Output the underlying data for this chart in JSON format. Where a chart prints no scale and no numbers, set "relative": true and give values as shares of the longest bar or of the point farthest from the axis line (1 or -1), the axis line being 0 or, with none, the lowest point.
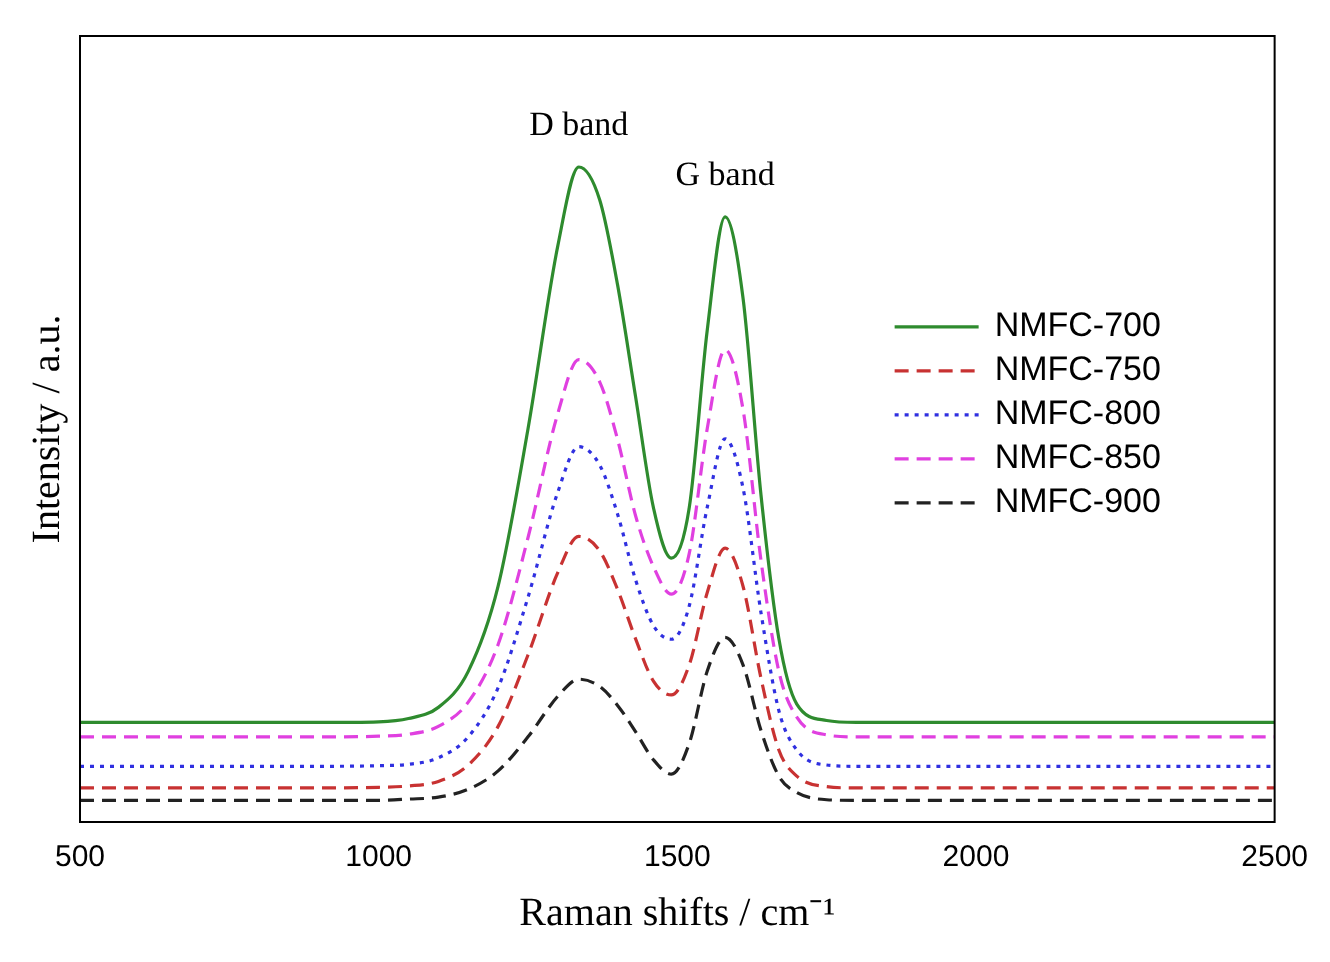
{
  "chart_data": {
    "type": "line",
    "relative": true,
    "xlabel": "Raman shifts / cm⁻¹",
    "ylabel": "Intensity / a.u.",
    "xlim": [
      500,
      2500
    ],
    "xticks": [
      500,
      1000,
      1500,
      2000,
      2500
    ],
    "grid": false,
    "legend": "right",
    "x": [
      500,
      900,
      1000,
      1050,
      1100,
      1150,
      1200,
      1250,
      1300,
      1335,
      1370,
      1400,
      1430,
      1460,
      1490,
      1520,
      1550,
      1580,
      1610,
      1640,
      1670,
      1700,
      1750,
      1800,
      2500
    ],
    "series": [
      {
        "name": "NMFC-700",
        "color": "#2e8b2e",
        "line_style": "solid",
        "values": [
          0.152,
          0.152,
          0.153,
          0.158,
          0.175,
          0.23,
          0.36,
          0.6,
          0.88,
          1.0,
          0.95,
          0.82,
          0.65,
          0.48,
          0.403,
          0.48,
          0.75,
          0.924,
          0.8,
          0.5,
          0.28,
          0.18,
          0.155,
          0.152,
          0.152
        ]
      },
      {
        "name": "NMFC-750",
        "color": "#c83232",
        "line_style": "dashed",
        "values": [
          0.052,
          0.052,
          0.053,
          0.055,
          0.062,
          0.087,
          0.146,
          0.255,
          0.381,
          0.436,
          0.414,
          0.355,
          0.28,
          0.215,
          0.194,
          0.24,
          0.35,
          0.418,
          0.36,
          0.22,
          0.11,
          0.07,
          0.054,
          0.052,
          0.052
        ]
      },
      {
        "name": "NMFC-800",
        "color": "#3030e0",
        "line_style": "dotted",
        "values": [
          0.085,
          0.085,
          0.086,
          0.088,
          0.098,
          0.13,
          0.205,
          0.343,
          0.504,
          0.573,
          0.545,
          0.47,
          0.37,
          0.3,
          0.279,
          0.33,
          0.48,
          0.585,
          0.51,
          0.32,
          0.17,
          0.11,
          0.087,
          0.085,
          0.085
        ]
      },
      {
        "name": "NMFC-850",
        "color": "#e040e0",
        "line_style": "dashed",
        "values": [
          0.13,
          0.13,
          0.131,
          0.134,
          0.146,
          0.183,
          0.271,
          0.434,
          0.624,
          0.706,
          0.672,
          0.584,
          0.468,
          0.39,
          0.348,
          0.41,
          0.6,
          0.721,
          0.63,
          0.4,
          0.23,
          0.16,
          0.133,
          0.13,
          0.13
        ]
      },
      {
        "name": "NMFC-900",
        "color": "#222222",
        "line_style": "dashed",
        "values": [
          0.033,
          0.033,
          0.033,
          0.035,
          0.038,
          0.05,
          0.078,
          0.13,
          0.192,
          0.218,
          0.207,
          0.178,
          0.138,
          0.095,
          0.073,
          0.12,
          0.23,
          0.282,
          0.24,
          0.14,
          0.07,
          0.045,
          0.034,
          0.033,
          0.033
        ]
      }
    ],
    "annotations": [
      "D band",
      "G band"
    ]
  }
}
